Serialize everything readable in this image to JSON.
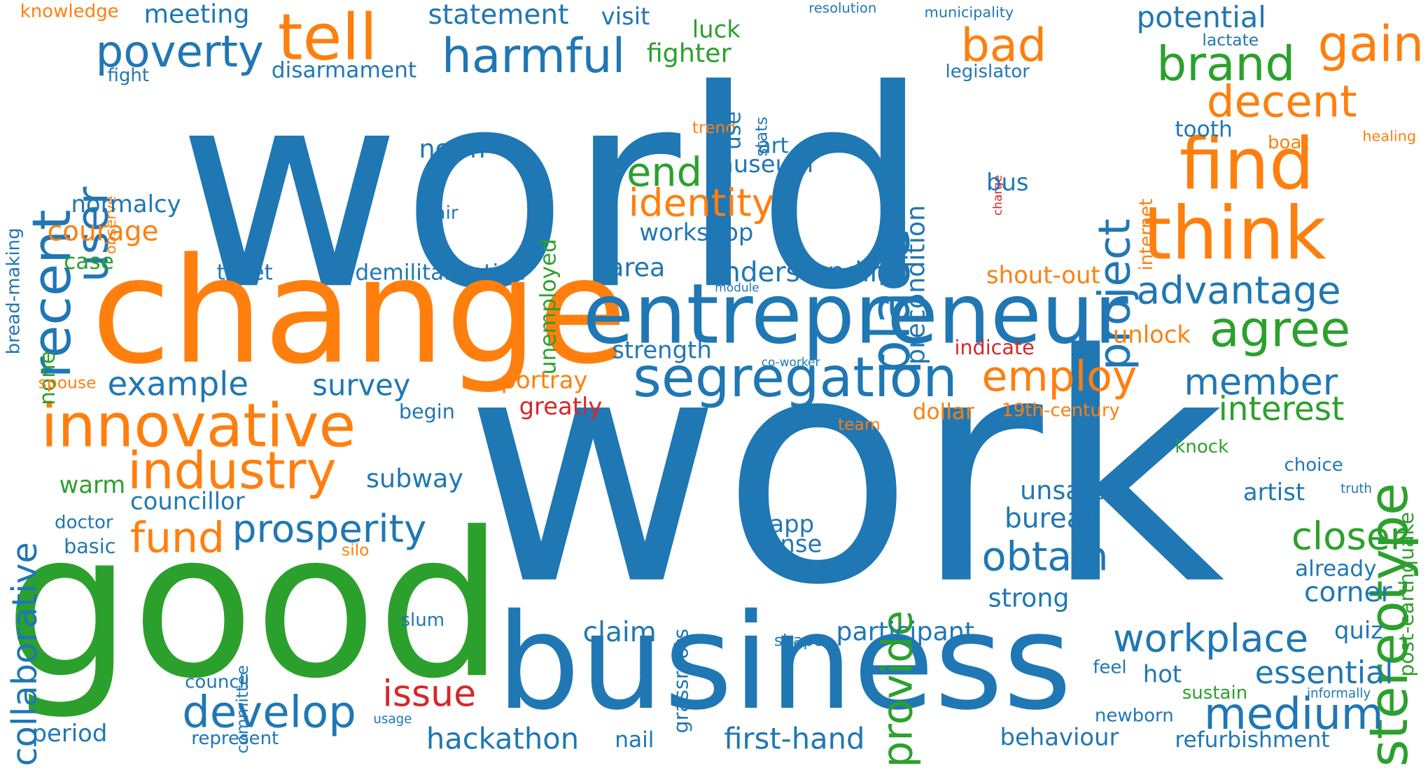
{
  "palette": {
    "blue": "#1f77b4",
    "orange": "#ff7f0e",
    "green": "#2ca02c",
    "red": "#d62728"
  },
  "words": [
    "world",
    "work",
    "change",
    "good",
    "business",
    "entrepreneur",
    "tell",
    "find",
    "think",
    "segregation",
    "innovative",
    "industry",
    "stereotype",
    "recent",
    "user",
    "poverty",
    "harmful",
    "gain",
    "brand",
    "decent",
    "bad",
    "agree",
    "place",
    "project",
    "provide",
    "develop",
    "medium",
    "workplace",
    "employ",
    "identity",
    "fund",
    "prosperity",
    "obtain",
    "closer",
    "advantage",
    "end",
    "member",
    "interest",
    "hackathon",
    "first-hand",
    "essential",
    "issue",
    "collaborative",
    "potential",
    "statement",
    "meeting",
    "knowledge",
    "tooth",
    "stats",
    "visit",
    "legislator",
    "municipality",
    "resolution",
    "lactate",
    "healing",
    "charge",
    "internet",
    "trend",
    "fight",
    "disarmament",
    "luck",
    "fighter",
    "use",
    "precondition",
    "norm",
    "observe",
    "art",
    "museum",
    "bus",
    "boat",
    "bread-making",
    "normalcy",
    "fair",
    "unemployed",
    "courage",
    "case",
    "workshop",
    "toilet",
    "demilitarization",
    "area",
    "understanding",
    "shout-out",
    "module",
    "unlock",
    "none",
    "strength",
    "indicate",
    "spouse",
    "co-worker",
    "portray",
    "greatly",
    "example",
    "survey",
    "begin",
    "dollar",
    "19th-century",
    "team",
    "knock",
    "warm",
    "subway",
    "councillor",
    "unsafe",
    "bureau",
    "artist",
    "choice",
    "truth",
    "post-earthquake",
    "doctor",
    "basic",
    "silo",
    "app",
    "sense",
    "grassroots",
    "committee",
    "already",
    "corner",
    "strong",
    "slum",
    "claim",
    "participant",
    "quiz",
    "shape",
    "council",
    "hot",
    "feel",
    "sustain",
    "informally",
    "period",
    "represent",
    "usage",
    "nail",
    "behaviour",
    "newborn",
    "refurbishment"
  ]
}
